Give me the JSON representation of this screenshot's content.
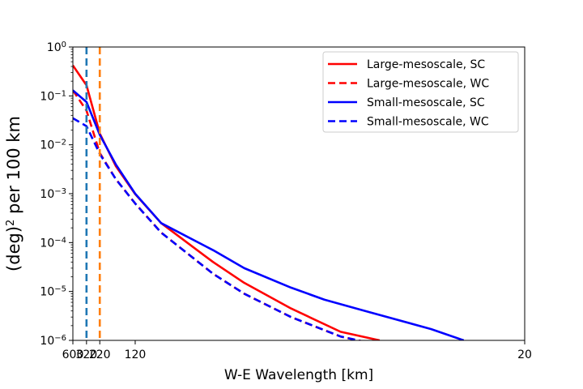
{
  "chart_data": {
    "type": "line",
    "xlabel": "W-E Wavelength [km]",
    "ylabel": "(deg)",
    "ylabel_sup": "2",
    "ylabel_rest": " per 100 km",
    "x_scale": "reciprocal",
    "y_scale": "log",
    "xlim": [
      600,
      20
    ],
    "ylim": [
      1e-06,
      1
    ],
    "x_ticks": [
      600,
      320,
      220,
      120,
      20
    ],
    "y_ticks": [
      {
        "value": 1,
        "base": "10",
        "exp": "0"
      },
      {
        "value": 0.1,
        "base": "10",
        "exp": "−1"
      },
      {
        "value": 0.01,
        "base": "10",
        "exp": "−2"
      },
      {
        "value": 0.001,
        "base": "10",
        "exp": "−3"
      },
      {
        "value": 0.0001,
        "base": "10",
        "exp": "−4"
      },
      {
        "value": 1e-05,
        "base": "10",
        "exp": "−5"
      },
      {
        "value": 1e-06,
        "base": "10",
        "exp": "−6"
      }
    ],
    "vlines": [
      {
        "x": 320,
        "color": "#1f77b4",
        "style": "dashed"
      },
      {
        "x": 220,
        "color": "#ff7f0e",
        "style": "dashed"
      }
    ],
    "legend": "top-right",
    "grid": false,
    "series": [
      {
        "name": "Large-mesoscale, SC",
        "color": "#ff0000",
        "style": "solid",
        "x": [
          600,
          320,
          220,
          160,
          120,
          90,
          60,
          50,
          40,
          33,
          29
        ],
        "y": [
          0.42,
          0.165,
          0.017,
          0.0037,
          0.00098,
          0.00025,
          4e-05,
          1.5e-05,
          4.5e-06,
          1.5e-06,
          1e-06
        ]
      },
      {
        "name": "Large-mesoscale, WC",
        "color": "#ff0000",
        "style": "dashed",
        "x": [
          600,
          320,
          220,
          160,
          120,
          90,
          60,
          50,
          40,
          33,
          29
        ],
        "y": [
          0.13,
          0.05,
          0.0068,
          0.002,
          0.00063,
          0.00016,
          2.3e-05,
          9e-06,
          3e-06,
          1.2e-06,
          8e-07
        ]
      },
      {
        "name": "Small-mesoscale, SC",
        "color": "#0000ff",
        "style": "solid",
        "x": [
          600,
          320,
          220,
          160,
          120,
          90,
          75,
          60,
          50,
          40,
          35,
          30,
          25,
          23
        ],
        "y": [
          0.13,
          0.075,
          0.016,
          0.004,
          0.001,
          0.00025,
          0.00015,
          7e-05,
          3e-05,
          1.2e-05,
          6.8e-06,
          3.8e-06,
          1.7e-06,
          1e-06
        ]
      },
      {
        "name": "Small-mesoscale, WC",
        "color": "#0000ff",
        "style": "dashed",
        "x": [
          600,
          320,
          220,
          160,
          120,
          90,
          60,
          50,
          40,
          33,
          29
        ],
        "y": [
          0.035,
          0.024,
          0.0065,
          0.002,
          0.00063,
          0.00016,
          2.3e-05,
          9e-06,
          3e-06,
          1.2e-06,
          8e-07
        ]
      }
    ]
  }
}
